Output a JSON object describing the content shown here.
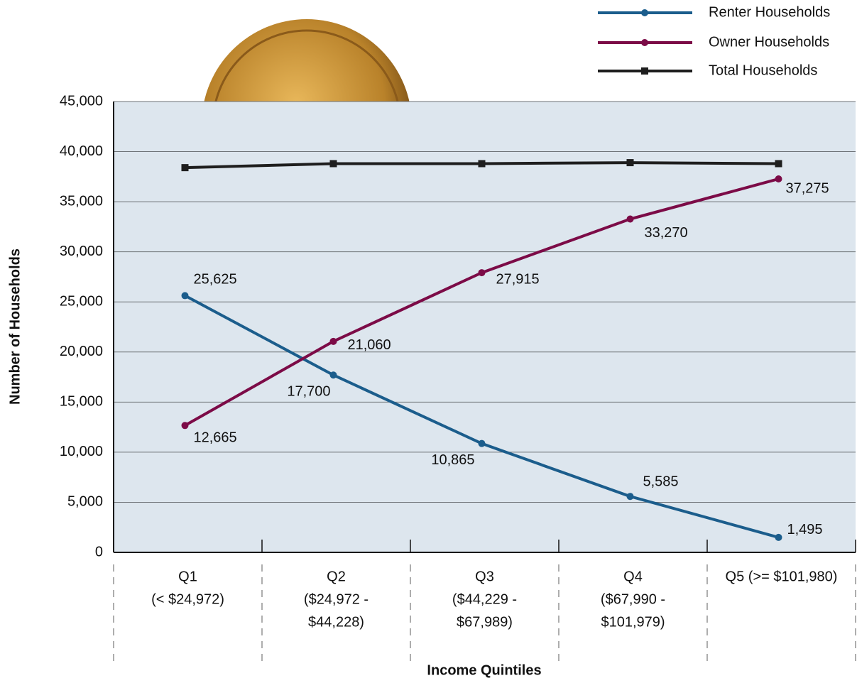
{
  "chart_data": {
    "type": "line",
    "x_label": "Income Quintiles",
    "y_label": "Number of Households",
    "categories": [
      [
        "Q1",
        "(< $24,972)"
      ],
      [
        "Q2",
        "($24,972 -",
        "$44,228)"
      ],
      [
        "Q3",
        "($44,229 -",
        "$67,989)"
      ],
      [
        "Q4",
        "($67,990 -",
        "$101,979)"
      ],
      [
        "Q5 (>= $101,980)"
      ]
    ],
    "series": [
      {
        "name": "Renter Households",
        "color": "#1b5d8c",
        "marker": "circle",
        "values": [
          25625,
          17700,
          10865,
          5585,
          1495
        ],
        "value_labels": [
          "25,625",
          "17,700",
          "10,865",
          "5,585",
          "1,495"
        ]
      },
      {
        "name": "Owner Households",
        "color": "#7c0b47",
        "marker": "circle",
        "values": [
          12665,
          21060,
          27915,
          33270,
          37275
        ],
        "value_labels": [
          "12,665",
          "21,060",
          "27,915",
          "33,270",
          "37,275"
        ]
      },
      {
        "name": "Total  Households",
        "color": "#1e1e1e",
        "marker": "square",
        "values": [
          38400,
          38800,
          38800,
          38900,
          38800
        ]
      }
    ],
    "ylim": [
      0,
      45000
    ],
    "yticks": [
      0,
      {
        "value": 5000,
        "label": "5,000"
      },
      {
        "value": 10000,
        "label": "10,000"
      },
      {
        "value": 15000,
        "label": "15,000"
      },
      {
        "value": 20000,
        "label": "20,000"
      },
      {
        "value": 25000,
        "label": "25,000"
      },
      {
        "value": 30000,
        "label": "30,000"
      },
      {
        "value": 35000,
        "label": "35,000"
      },
      {
        "value": 40000,
        "label": "40,000"
      },
      {
        "value": 45000,
        "label": "45,000"
      }
    ],
    "grid": true
  }
}
